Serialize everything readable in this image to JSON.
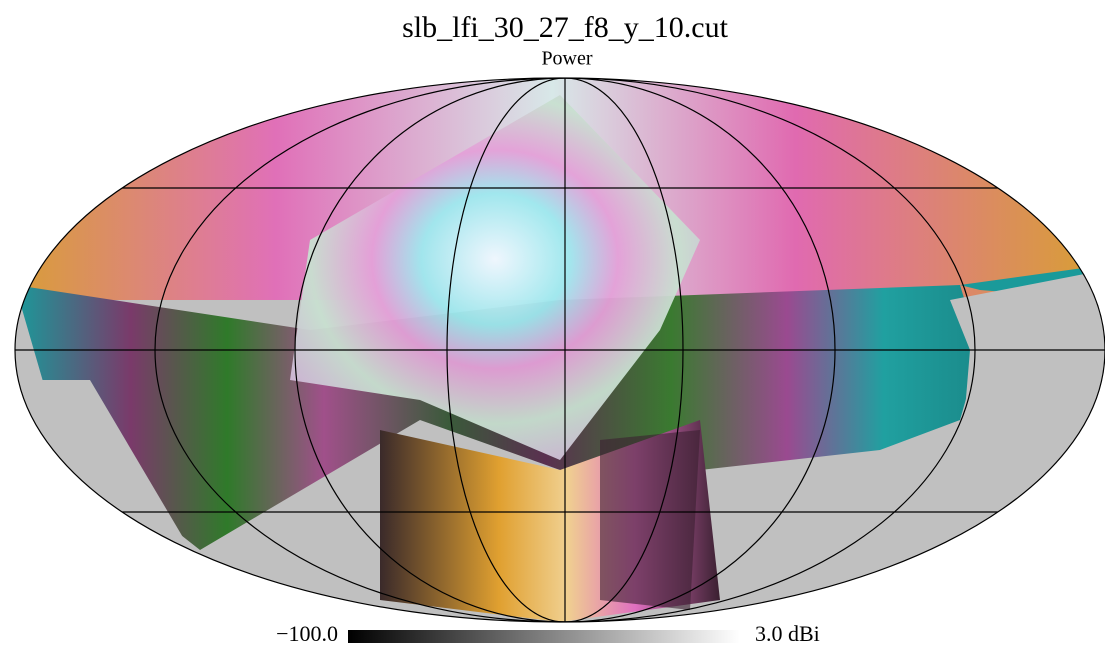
{
  "title": "slb_lfi_30_27_f8_y_10.cut",
  "subtitle": "Power",
  "colorbar": {
    "min_label": "−100.0",
    "max_label": "3.0 dBi"
  }
}
